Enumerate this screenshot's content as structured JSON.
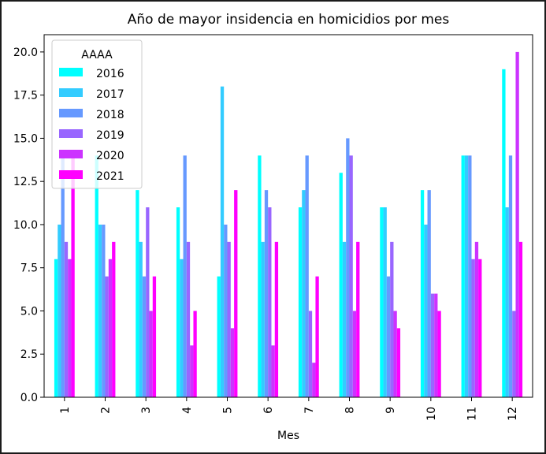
{
  "chart_data": {
    "type": "bar",
    "title": "Año de mayor insidencia en homicidios por mes",
    "xlabel": "Mes",
    "ylabel": "",
    "ylim": [
      0,
      21.0
    ],
    "yticks": [
      "0.0",
      "2.5",
      "5.0",
      "7.5",
      "10.0",
      "12.5",
      "15.0",
      "17.5",
      "20.0"
    ],
    "categories": [
      "1",
      "2",
      "3",
      "4",
      "5",
      "6",
      "7",
      "8",
      "9",
      "10",
      "11",
      "12"
    ],
    "legend": {
      "title": "AAAA",
      "placement": "upper-left"
    },
    "series": [
      {
        "name": "2016",
        "color": "#00ffff",
        "values": [
          8,
          14,
          12,
          11,
          7,
          14,
          11,
          13,
          11,
          12,
          14,
          19
        ]
      },
      {
        "name": "2017",
        "color": "#33ccff",
        "values": [
          10,
          10,
          9,
          8,
          18,
          9,
          12,
          9,
          11,
          10,
          14,
          11
        ]
      },
      {
        "name": "2018",
        "color": "#6699ff",
        "values": [
          14,
          10,
          7,
          14,
          10,
          12,
          14,
          15,
          7,
          12,
          14,
          14
        ]
      },
      {
        "name": "2019",
        "color": "#9966ff",
        "values": [
          9,
          7,
          11,
          9,
          9,
          11,
          5,
          14,
          9,
          6,
          8,
          5
        ]
      },
      {
        "name": "2020",
        "color": "#cc33ff",
        "values": [
          8,
          8,
          5,
          3,
          4,
          3,
          2,
          5,
          5,
          6,
          9,
          20
        ]
      },
      {
        "name": "2021",
        "color": "#ff00ff",
        "values": [
          14,
          9,
          7,
          5,
          12,
          9,
          7,
          9,
          4,
          5,
          8,
          9
        ]
      }
    ]
  }
}
